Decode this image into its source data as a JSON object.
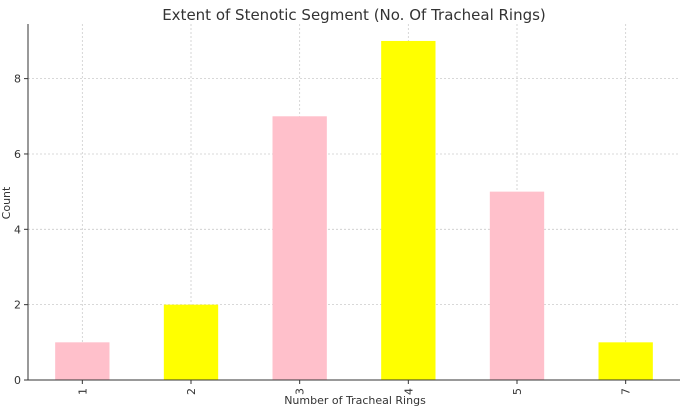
{
  "chart_data": {
    "type": "bar",
    "title": "Extent of Stenotic Segment (No. Of Tracheal Rings)",
    "xlabel": "Number of Tracheal Rings",
    "ylabel": "Count",
    "categories": [
      "1",
      "2",
      "3",
      "4",
      "5",
      "7"
    ],
    "values": [
      1,
      2,
      7,
      9,
      5,
      1
    ],
    "bar_colors": [
      "#ffc0cb",
      "#ffff00",
      "#ffc0cb",
      "#ffff00",
      "#ffc0cb",
      "#ffff00"
    ],
    "ylim": [
      0,
      9.45
    ],
    "yticks": [
      0,
      2,
      4,
      6,
      8
    ],
    "grid": true,
    "legend": "none"
  }
}
